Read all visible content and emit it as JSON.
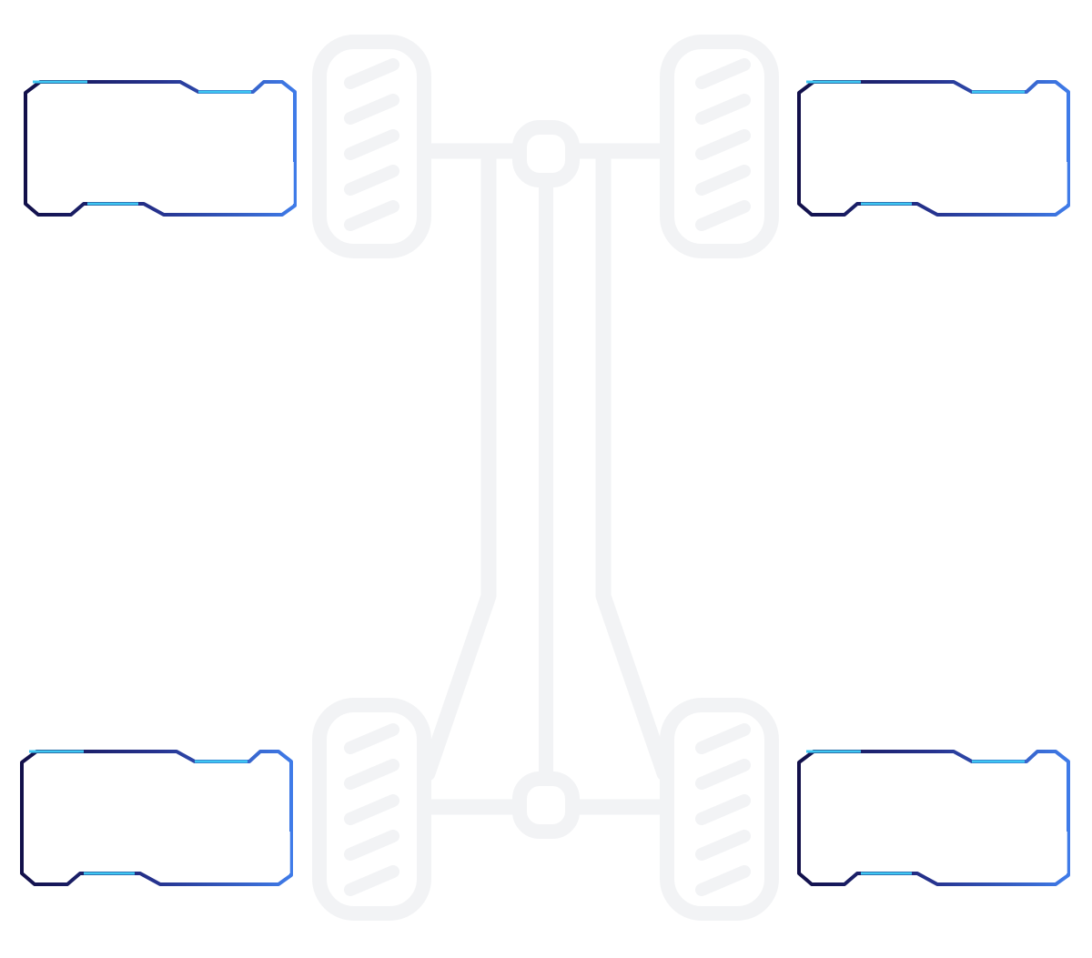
{
  "diagram": {
    "colors": {
      "chassis": "#f2f3f5",
      "frame_dark": "#12104a",
      "frame_mid": "#26338f",
      "frame_light": "#3f7be8",
      "frame_accent": "#3ec6f2"
    },
    "wheels": [
      {
        "id": "front-left",
        "tread_count": 5
      },
      {
        "id": "front-right",
        "tread_count": 5
      },
      {
        "id": "rear-left",
        "tread_count": 5
      },
      {
        "id": "rear-right",
        "tread_count": 5
      }
    ],
    "panels": [
      {
        "id": "front-left",
        "text": ""
      },
      {
        "id": "front-right",
        "text": ""
      },
      {
        "id": "rear-left",
        "text": ""
      },
      {
        "id": "rear-right",
        "text": ""
      }
    ]
  }
}
